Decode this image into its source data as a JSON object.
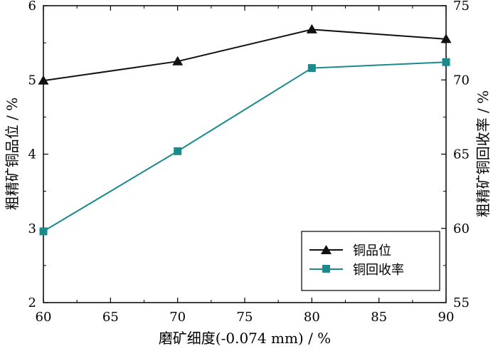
{
  "chart_data": {
    "type": "line",
    "title": "",
    "xlabel": "磨矿细度(-0.074 mm) / %",
    "ylabel_left": "粗精矿铜品位 / %",
    "ylabel_right": "粗精矿铜回收率 / %",
    "xlim": [
      60,
      90
    ],
    "ylim_left": [
      2,
      6
    ],
    "ylim_right": [
      55,
      75
    ],
    "x_ticks": [
      "60",
      "65",
      "70",
      "75",
      "80",
      "85",
      "90"
    ],
    "y_left_ticks": [
      "2",
      "3",
      "4",
      "5",
      "6"
    ],
    "y_right_ticks": [
      "55",
      "60",
      "65",
      "70",
      "75"
    ],
    "grid": false,
    "legend_position": "lower-right",
    "x": [
      60,
      70,
      80,
      90
    ],
    "series": [
      {
        "name": "铜品位",
        "axis": "left",
        "marker": "triangle",
        "color": "#111111",
        "values": [
          4.99,
          5.25,
          5.68,
          5.55
        ]
      },
      {
        "name": "铜回收率",
        "axis": "right",
        "marker": "square",
        "color": "#1a8a8a",
        "values": [
          59.8,
          65.2,
          70.8,
          71.2
        ]
      }
    ]
  }
}
